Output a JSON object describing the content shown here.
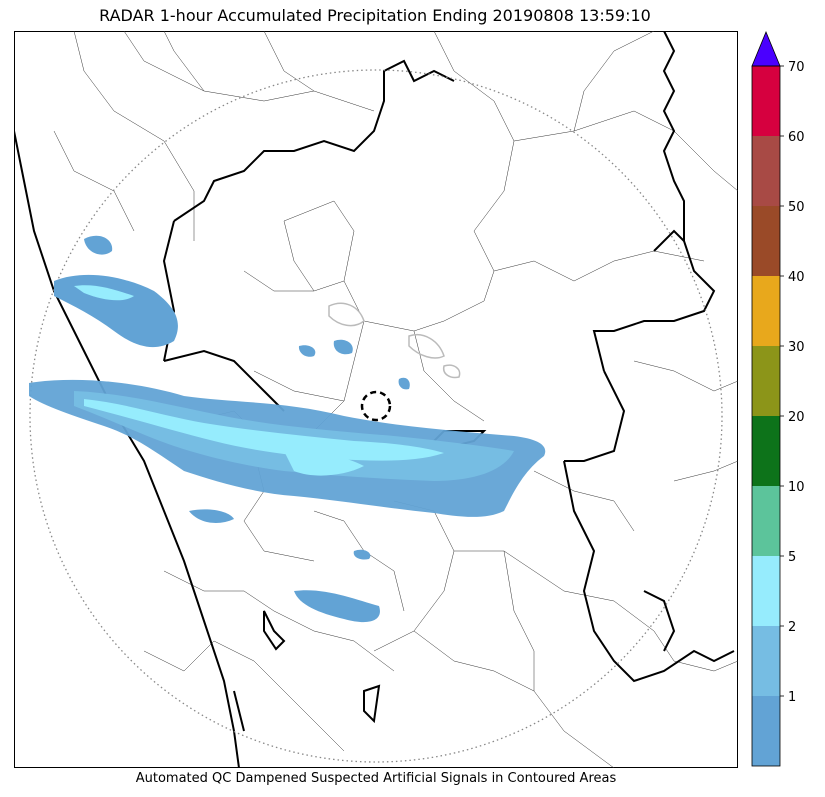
{
  "title": "RADAR 1-hour Accumulated Precipitation Ending 20190808 13:59:10",
  "footer_note": "Automated QC Dampened Suspected Artificial Signals in Contoured Areas",
  "colorbar": {
    "bins": [
      {
        "low": 0,
        "high": 1,
        "color": "#62a3d5"
      },
      {
        "low": 1,
        "high": 2,
        "color": "#76bde3"
      },
      {
        "low": 2,
        "high": 5,
        "color": "#96ecfd"
      },
      {
        "low": 5,
        "high": 10,
        "color": "#5cc49b"
      },
      {
        "low": 10,
        "high": 20,
        "color": "#0d731a"
      },
      {
        "low": 20,
        "high": 30,
        "color": "#8c9519"
      },
      {
        "low": 30,
        "high": 40,
        "color": "#e8a81c"
      },
      {
        "low": 40,
        "high": 50,
        "color": "#9a4a28"
      },
      {
        "low": 50,
        "high": 60,
        "color": "#a84a45"
      },
      {
        "low": 60,
        "high": 70,
        "color": "#d6003f"
      }
    ],
    "overflow_color": "#4a00ff",
    "tick_labels": [
      "1",
      "2",
      "5",
      "10",
      "20",
      "30",
      "40",
      "50",
      "60",
      "70"
    ]
  },
  "map": {
    "range_ring": "dotted gray circle",
    "radar_site_marker": "dashed black circle",
    "legend_colors": {
      "light_rain": "#62a3d5",
      "moderate": "#76bde3",
      "heavier": "#96ecfd",
      "qc_contour": "#bbbbbb"
    }
  }
}
